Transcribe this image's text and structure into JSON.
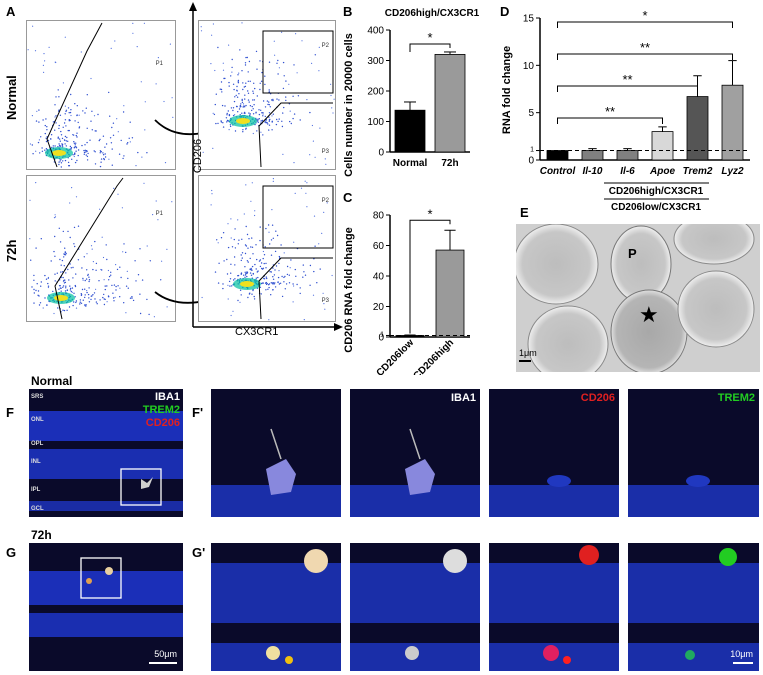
{
  "panels": {
    "A": {
      "label": "A",
      "row_labels": [
        "Normal",
        "72h"
      ],
      "gate_left": "P1",
      "gates_right": [
        "P2",
        "P3"
      ],
      "x_axis_label": "CX3CR1",
      "y_axis_label": "CD206"
    },
    "B": {
      "label": "B"
    },
    "C": {
      "label": "C"
    },
    "D": {
      "label": "D",
      "group_label_high": "CD206high/CX3CR1",
      "group_label_low": "CD206low/CX3CR1"
    },
    "E": {
      "label": "E",
      "marker_p": "P",
      "marker_star": "★",
      "scale": "1μm"
    },
    "F": {
      "label": "F",
      "title": "Normal",
      "layers": [
        "SRS",
        "ONL",
        "OPL",
        "INL",
        "IPL",
        "GCL"
      ],
      "channels": [
        "IBA1",
        "TREM2",
        "CD206"
      ]
    },
    "Fp": {
      "label": "F'",
      "channels": [
        "IBA1",
        "CD206",
        "TREM2"
      ]
    },
    "G": {
      "label": "G",
      "title": "72h",
      "scale": "50μm"
    },
    "Gp": {
      "label": "G'",
      "scale": "10μm"
    }
  },
  "colors": {
    "iba1": "#ffffff",
    "trem2": "#22cc22",
    "cd206": "#e02020",
    "dapi": "#1a3ad0"
  },
  "chart_data": [
    {
      "panel": "B",
      "type": "bar",
      "title": "CD206high/CX3CR1",
      "ylabel": "Cells number in 20000 cells",
      "categories": [
        "Normal",
        "72h"
      ],
      "values": [
        137,
        320
      ],
      "errors": [
        27,
        8
      ],
      "ylim": [
        0,
        400
      ],
      "yticks": [
        0,
        100,
        200,
        300,
        400
      ],
      "significance": "*",
      "bar_colors": [
        "#000000",
        "#9a9a9a"
      ]
    },
    {
      "panel": "C",
      "type": "bar",
      "ylabel": "CD206 RNA fold change",
      "categories": [
        "CD206low",
        "CD206high"
      ],
      "values": [
        1,
        57
      ],
      "errors": [
        0.3,
        13
      ],
      "ylim": [
        0,
        80
      ],
      "yticks": [
        0,
        20,
        40,
        60,
        80
      ],
      "extra_tick": 1,
      "reference_line": 1,
      "significance": "*",
      "bar_colors": [
        "#000000",
        "#9a9a9a"
      ]
    },
    {
      "panel": "D",
      "type": "bar",
      "ylabel": "RNA fold change",
      "categories": [
        "Control",
        "Il-10",
        "Il-6",
        "Apoe",
        "Trem2",
        "Lyz2"
      ],
      "values": [
        1,
        1,
        1,
        3,
        6.7,
        7.9
      ],
      "errors": [
        0,
        0.2,
        0.2,
        0.5,
        2.2,
        2.6
      ],
      "ylim": [
        0,
        15
      ],
      "yticks": [
        0,
        5,
        10,
        15
      ],
      "extra_tick": 1,
      "reference_line": 1,
      "bar_colors": [
        "#000000",
        "#808080",
        "#808080",
        "#d8d8d8",
        "#555555",
        "#a0a0a0"
      ],
      "comparisons": [
        {
          "from": "Control",
          "to": "Apoe",
          "label": "**"
        },
        {
          "from": "Control",
          "to": "Trem2",
          "label": "**"
        },
        {
          "from": "Control",
          "to": "Lyz2",
          "label": "**"
        },
        {
          "from": "Control",
          "to": "Lyz2",
          "label": "*"
        }
      ]
    }
  ]
}
